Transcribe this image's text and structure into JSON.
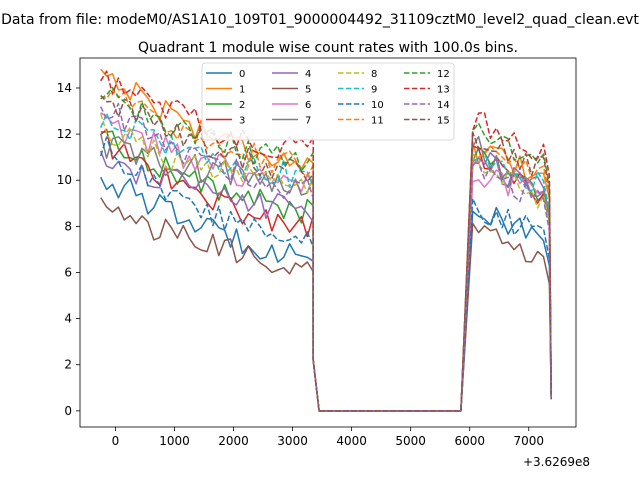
{
  "chart_data": {
    "type": "line",
    "suptitle": "Data from file: modeM0/AS1A10_109T01_9000004492_31109cztM0_level2_quad_clean.evt",
    "title": "Quadrant 1 module wise count rates with 100.0s bins.",
    "xlabel": "",
    "ylabel": "",
    "x_offset_label": "+3.6269e8",
    "xlim": [
      -600,
      7800
    ],
    "ylim": [
      -0.7,
      15.3
    ],
    "xticks": [
      0,
      1000,
      2000,
      3000,
      4000,
      5000,
      6000,
      7000
    ],
    "xtick_labels": [
      "0",
      "1000",
      "2000",
      "3000",
      "4000",
      "5000",
      "6000",
      "7000"
    ],
    "yticks": [
      0,
      2,
      4,
      6,
      8,
      10,
      12,
      14
    ],
    "ytick_labels": [
      "0",
      "2",
      "4",
      "6",
      "8",
      "10",
      "12",
      "14"
    ],
    "grid": false,
    "legend": {
      "placement": "top-center",
      "columns": 4
    },
    "segments": {
      "a": {
        "x_start": -250,
        "x_step": 100,
        "count": 37
      },
      "gap": {
        "x": [
          3450,
          5850
        ],
        "value": 0
      },
      "b": {
        "x_start": 6050,
        "x_step": 100,
        "count": 13
      }
    },
    "series": [
      {
        "name": "0",
        "color": "#1f77b4",
        "dash": "solid",
        "a0": 10.2,
        "a1": 6.8,
        "b0": 8.7,
        "b1": 7.3,
        "end": 0.5
      },
      {
        "name": "1",
        "color": "#ff7f0e",
        "dash": "solid",
        "a0": 14.8,
        "a1": 10.8,
        "b0": 11.2,
        "b1": 10.2,
        "end": 0.8
      },
      {
        "name": "2",
        "color": "#2ca02c",
        "dash": "solid",
        "a0": 12.0,
        "a1": 8.7,
        "b0": 11.0,
        "b1": 9.2,
        "end": 0.7
      },
      {
        "name": "3",
        "color": "#d62728",
        "dash": "solid",
        "a0": 11.8,
        "a1": 8.0,
        "b0": 11.2,
        "b1": 9.3,
        "end": 0.6
      },
      {
        "name": "4",
        "color": "#9467bd",
        "dash": "solid",
        "a0": 11.0,
        "a1": 8.7,
        "b0": 11.0,
        "b1": 9.5,
        "end": 0.7
      },
      {
        "name": "5",
        "color": "#8c564b",
        "dash": "solid",
        "a0": 8.9,
        "a1": 6.3,
        "b0": 8.0,
        "b1": 6.5,
        "end": 0.5
      },
      {
        "name": "6",
        "color": "#e377c2",
        "dash": "solid",
        "a0": 12.5,
        "a1": 9.8,
        "b0": 10.5,
        "b1": 9.3,
        "end": 0.6
      },
      {
        "name": "7",
        "color": "#7f7f7f",
        "dash": "solid",
        "a0": 11.5,
        "a1": 9.9,
        "b0": 11.5,
        "b1": 9.3,
        "end": 0.6
      },
      {
        "name": "8",
        "color": "#bcbd22",
        "dash": "dashed",
        "a0": 12.3,
        "a1": 9.6,
        "b0": 10.5,
        "b1": 9.1,
        "end": 0.6
      },
      {
        "name": "9",
        "color": "#17becf",
        "dash": "dashed",
        "a0": 12.8,
        "a1": 10.2,
        "b0": 11.0,
        "b1": 9.7,
        "end": 0.7
      },
      {
        "name": "10",
        "color": "#1f77b4",
        "dash": "dashed",
        "a0": 11.5,
        "a1": 7.3,
        "b0": 8.9,
        "b1": 7.6,
        "end": 0.6
      },
      {
        "name": "11",
        "color": "#ff7f0e",
        "dash": "dashed",
        "a0": 14.0,
        "a1": 10.6,
        "b0": 11.5,
        "b1": 10.3,
        "end": 0.7
      },
      {
        "name": "12",
        "color": "#2ca02c",
        "dash": "dashed",
        "a0": 13.8,
        "a1": 10.9,
        "b0": 12.0,
        "b1": 10.8,
        "end": 0.8
      },
      {
        "name": "13",
        "color": "#d62728",
        "dash": "dashed",
        "a0": 14.5,
        "a1": 11.3,
        "b0": 12.7,
        "b1": 11.2,
        "end": 0.8
      },
      {
        "name": "14",
        "color": "#9467bd",
        "dash": "dashed",
        "a0": 13.3,
        "a1": 9.6,
        "b0": 10.8,
        "b1": 8.8,
        "end": 0.6
      },
      {
        "name": "15",
        "color": "#8c564b",
        "dash": "dashed",
        "a0": 13.7,
        "a1": 10.4,
        "b0": 11.6,
        "b1": 10.6,
        "end": 0.7
      }
    ]
  }
}
